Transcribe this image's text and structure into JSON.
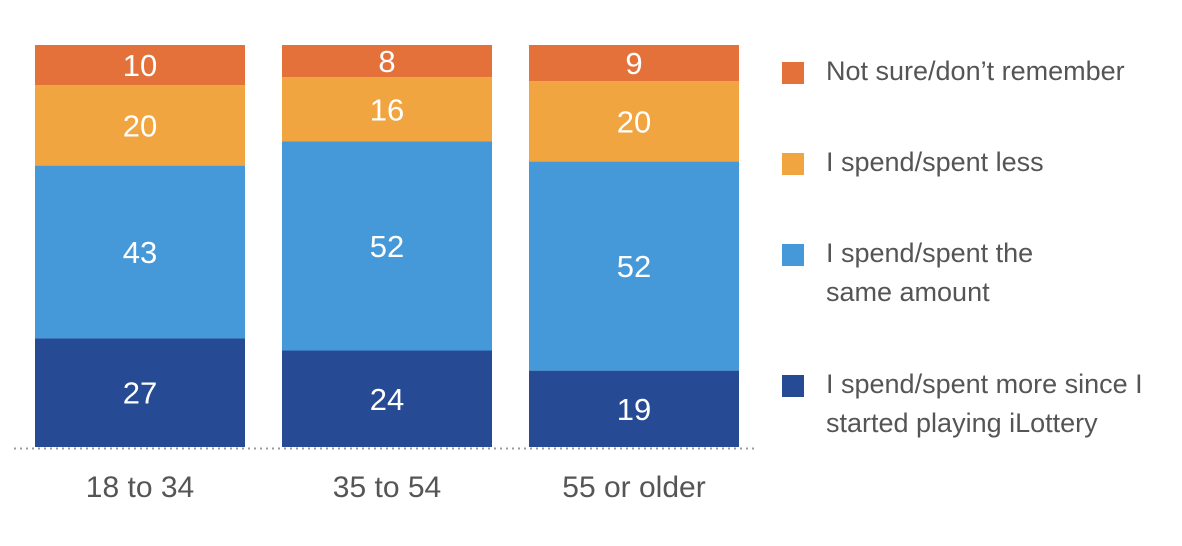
{
  "chart_data": {
    "type": "bar",
    "stacked": true,
    "orientation": "vertical",
    "categories": [
      "18 to 34",
      "35 to 54",
      "55 or older"
    ],
    "series": [
      {
        "name": "I spend/spent more since I started playing iLottery",
        "values": [
          27,
          24,
          19
        ],
        "color": "#264a94"
      },
      {
        "name": "I spend/spent the same amount",
        "values": [
          43,
          52,
          52
        ],
        "color": "#4699d9"
      },
      {
        "name": "I spend/spent less",
        "values": [
          20,
          16,
          20
        ],
        "color": "#f0a540"
      },
      {
        "name": "Not sure/don’t remember",
        "values": [
          10,
          8,
          9
        ],
        "color": "#e5713a"
      }
    ],
    "legend": {
      "position": "right",
      "items": [
        {
          "label": "Not sure/don’t remember",
          "color": "#e5713a"
        },
        {
          "label": "I spend/spent less",
          "color": "#f0a540"
        },
        {
          "label": "I spend/spent the same amount",
          "color": "#4699d9"
        },
        {
          "label": "I spend/spent more since I started playing iLottery",
          "color": "#264a94"
        }
      ]
    },
    "ylim": [
      0,
      100
    ],
    "grid": false,
    "baseline": "dotted"
  }
}
